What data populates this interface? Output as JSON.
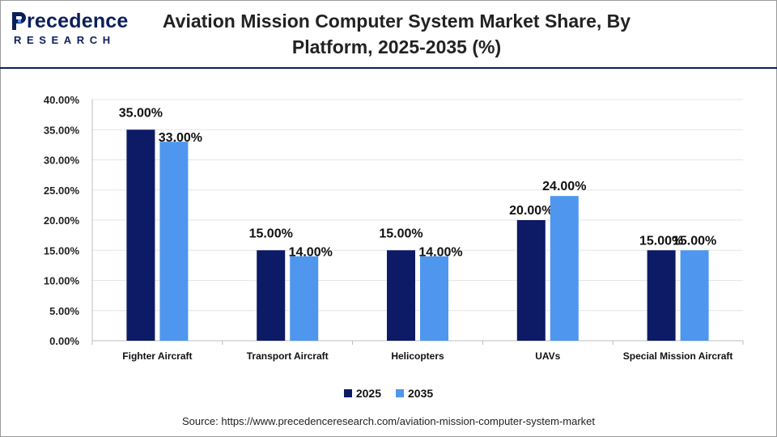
{
  "header": {
    "logo_main": "recedence",
    "logo_sub": "RESEARCH",
    "title_line1": "Aviation Mission Computer System Market Share, By",
    "title_line2": "Platform, 2025-2035 (%)"
  },
  "colors": {
    "brand": "#0b1f5c",
    "series_2025": "#0d1a66",
    "series_2035": "#4f96ef"
  },
  "chart_data": {
    "type": "bar",
    "categories": [
      "Fighter Aircraft",
      "Transport Aircraft",
      "Helicopters",
      "UAVs",
      "Special Mission Aircraft"
    ],
    "series": [
      {
        "name": "2025",
        "values": [
          35,
          15,
          15,
          20,
          15
        ],
        "labels": [
          "35.00%",
          "15.00%",
          "15.00%",
          "20.00%",
          "15.00%"
        ]
      },
      {
        "name": "2035",
        "values": [
          33,
          14,
          14,
          24,
          15
        ],
        "labels": [
          "33.00%",
          "14.00%",
          "14.00%",
          "24.00%",
          "15.00%"
        ]
      }
    ],
    "yticks": [
      "0.00%",
      "5.00%",
      "10.00%",
      "15.00%",
      "20.00%",
      "25.00%",
      "30.00%",
      "35.00%",
      "40.00%"
    ],
    "ylim": [
      0,
      40
    ],
    "grid": true,
    "legend": "bottom-center"
  },
  "source": "Source: https://www.precedenceresearch.com/aviation-mission-computer-system-market"
}
